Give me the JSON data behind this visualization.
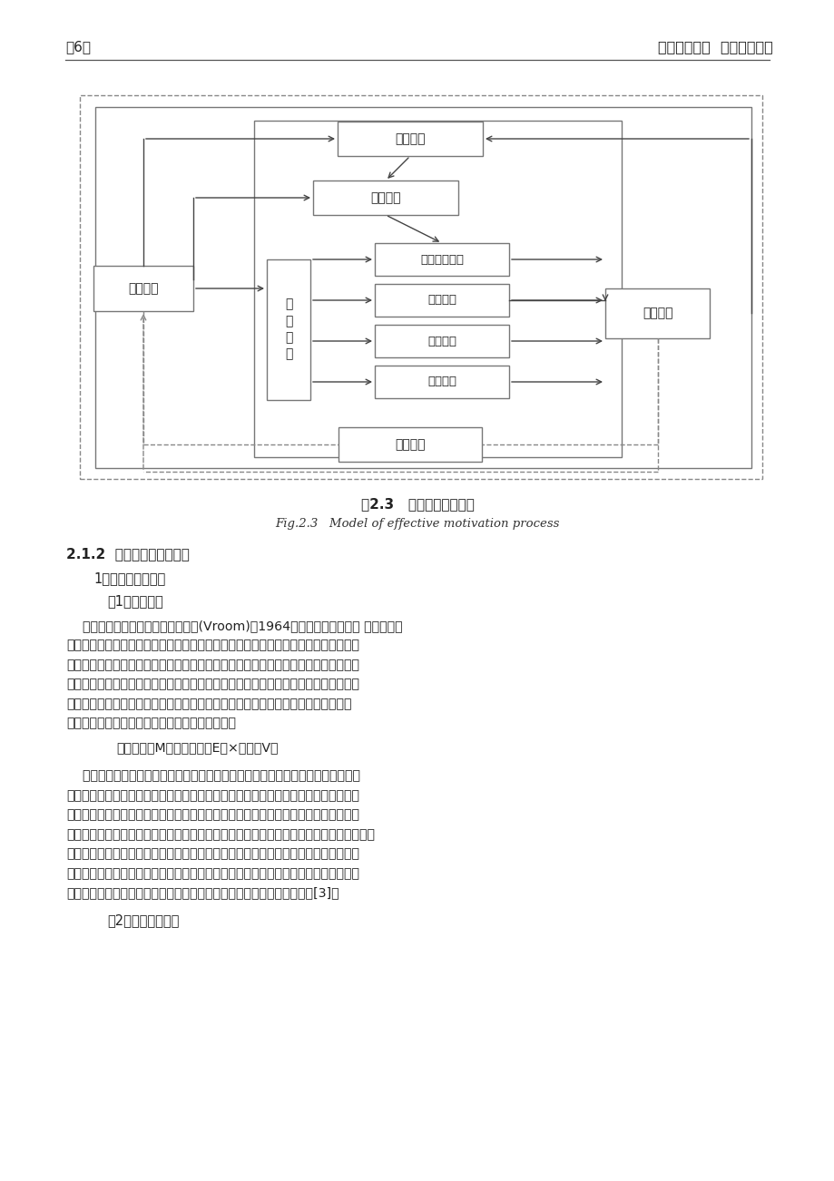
{
  "page_header_left": "第6页",
  "page_header_right": "华东理工大学  硕士学位论文",
  "fig_caption_cn": "图2.3   有效激励过程模式",
  "fig_caption_en": "Fig.2.3   Model of effective motivation process",
  "section_title": "2.1.2  西方的典型激励理论",
  "subsection1": "1、过程型激励理论",
  "subsection2": "（1）期望理论",
  "para1_lines": [
    "    期望理论是美国管理心理学弗鲁姆(Vroom)于1964年在《工作与激励》 一书中首次",
    "提出来的。该理论反映了人的积极行为产生的内在机制，它的基础是：人之所以能够从",
    "事某项工作并达成组织目标，是因为这些工作和组织目标会帮助他们达成自己的目标、",
    "满足自己某方面的需要。对于认为自己能够通过努力带来工作的高绩效并且估计到其成",
    "就能够获得奖励的员工会提高其工作积极性，并且他们的奖励和他的期望相一致，这",
    "促使其保持这种工作积极性，用公式表示，即是："
  ],
  "formula": "激励力量（M）＝期望值（E）×效价（V）",
  "para2_lines": [
    "    当个人对实现某项目标的效价高，且实现可能性也大时，则实现此项目标的激励力",
    "量就大；若效价和期望值这两个因素中的任何一项较低时，则实现此目标的激励力量就",
    "不大。按照弗鲁姆的期望理论，为了有效地激发员工的积极性，需要正确处理好三种关",
    "系：一是努力与成绩的关系，二是成绩与奖励的关系，一是激励与满足是个人需要的关系。",
    "在实际管理工作中应根据员工的不同需要，宜采取多种形式的奖励，才能最大限度地挖",
    "掘员工的潜力。期望理论的最大贡献在于，它使企业管理者们懂得，为了激发员工的积",
    "极性，必须提高员工行动结果的偏好程度，同时要提高员工对高期望概率[3]。"
  ],
  "subsection3": "    （2）目标设定理论",
  "bg": "#ffffff",
  "text_color": "#222222",
  "box_edge": "#777777",
  "arrow_color": "#444444",
  "dashed_color": "#888888"
}
